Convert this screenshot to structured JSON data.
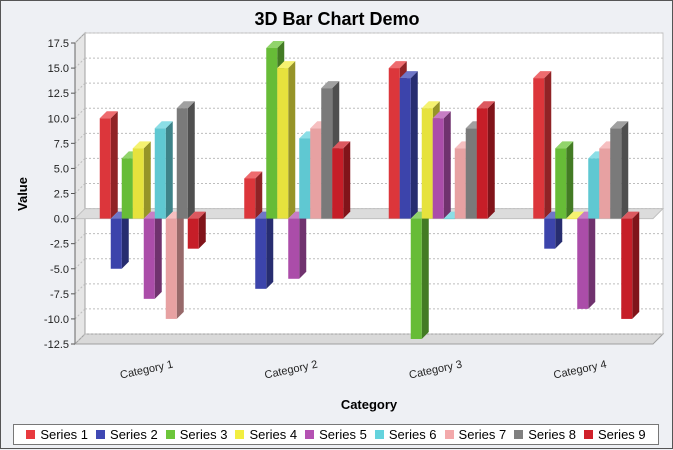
{
  "chart_data": {
    "type": "bar",
    "title": "3D Bar Chart Demo",
    "xlabel": "Category",
    "ylabel": "Value",
    "ylim": [
      -12.5,
      17.5
    ],
    "yticks": [
      17.5,
      15.0,
      12.5,
      10.0,
      7.5,
      5.0,
      2.5,
      0.0,
      -2.5,
      -5.0,
      -7.5,
      -10.0,
      -12.5
    ],
    "grid": true,
    "legend_position": "bottom",
    "categories": [
      "Category 1",
      "Category 2",
      "Category 3",
      "Category 4"
    ],
    "series": [
      {
        "name": "Series 1",
        "color": "#e8393e",
        "values": [
          10.0,
          4.0,
          15.0,
          14.0
        ]
      },
      {
        "name": "Series 2",
        "color": "#3f48b4",
        "values": [
          -5.0,
          -7.0,
          14.0,
          -3.0
        ]
      },
      {
        "name": "Series 3",
        "color": "#6cc63a",
        "values": [
          6.0,
          17.0,
          -12.0,
          7.0
        ]
      },
      {
        "name": "Series 4",
        "color": "#f2ee40",
        "values": [
          7.0,
          15.0,
          11.0,
          0.0
        ]
      },
      {
        "name": "Series 5",
        "color": "#b451b2",
        "values": [
          -8.0,
          -6.0,
          10.0,
          -9.0
        ]
      },
      {
        "name": "Series 6",
        "color": "#64d3dd",
        "values": [
          9.0,
          8.0,
          0.0,
          6.0
        ]
      },
      {
        "name": "Series 7",
        "color": "#f3a9ab",
        "values": [
          -10.0,
          9.0,
          7.0,
          7.0
        ]
      },
      {
        "name": "Series 8",
        "color": "#808080",
        "values": [
          11.0,
          13.0,
          9.0,
          9.0
        ]
      },
      {
        "name": "Series 9",
        "color": "#d0202a",
        "values": [
          -3.0,
          7.0,
          11.0,
          -10.0
        ]
      }
    ]
  }
}
